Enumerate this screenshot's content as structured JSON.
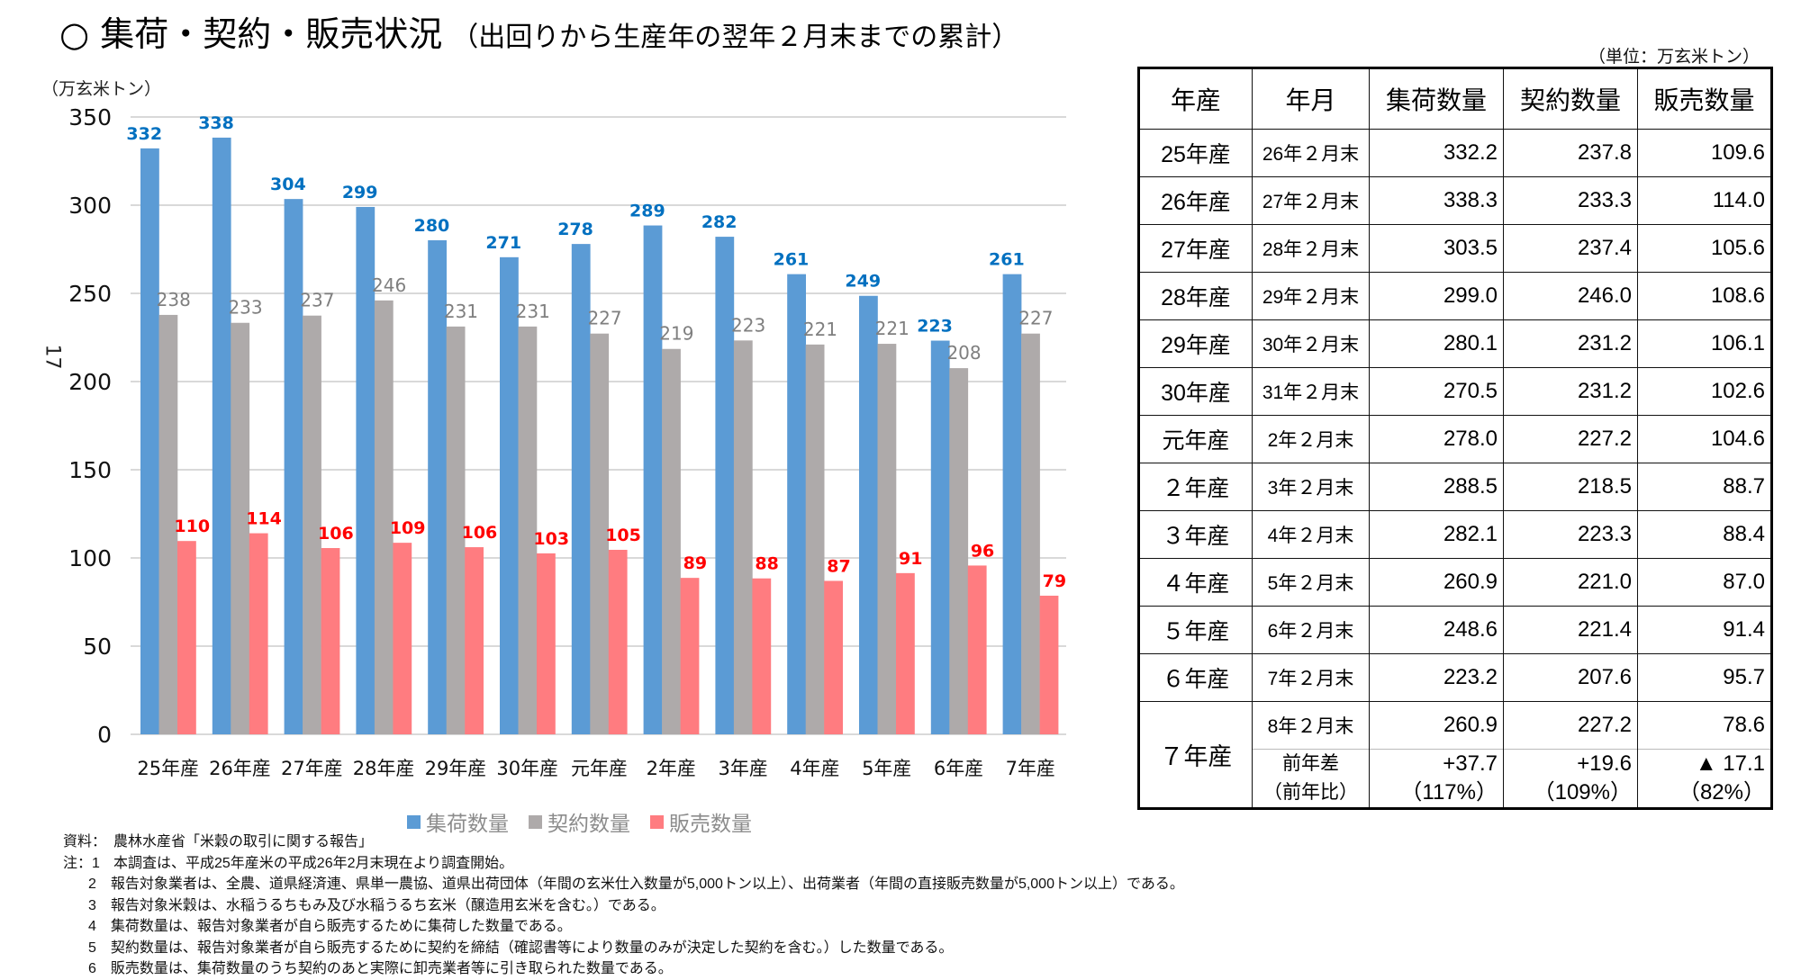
{
  "title": {
    "main": "○ 集荷・契約・販売状況",
    "sub": "（出回りから生産年の翌年２月末までの累計）"
  },
  "side_number": "17",
  "table_unit": "（単位：万玄米トン）",
  "chart_data": {
    "type": "bar",
    "ylabel": "（万玄米トン）",
    "ylim": [
      0,
      350
    ],
    "yticks": [
      0,
      50,
      100,
      150,
      200,
      250,
      300,
      350
    ],
    "grid": true,
    "legend_position": "bottom",
    "categories": [
      "25年産",
      "26年産",
      "27年産",
      "28年産",
      "29年産",
      "30年産",
      "元年産",
      "2年産",
      "3年産",
      "4年産",
      "5年産",
      "6年産",
      "7年産"
    ],
    "series": [
      {
        "name": "集荷数量",
        "color": "#5B9BD5",
        "label_color": "#0070C0",
        "values": [
          332.2,
          338.3,
          303.5,
          299.0,
          280.1,
          270.5,
          278.0,
          288.5,
          282.1,
          260.9,
          248.6,
          223.2,
          260.9
        ],
        "labels": [
          "332",
          "338",
          "304",
          "299",
          "280",
          "271",
          "278",
          "289",
          "282",
          "261",
          "249",
          "223",
          "261"
        ]
      },
      {
        "name": "契約数量",
        "color": "#AEAAAA",
        "label_color": "#7F7F7F",
        "values": [
          237.8,
          233.3,
          237.4,
          246.0,
          231.2,
          231.2,
          227.2,
          218.5,
          223.3,
          221.0,
          221.4,
          207.6,
          227.2
        ],
        "labels": [
          "238",
          "233",
          "237",
          "246",
          "231",
          "231",
          "227",
          "219",
          "223",
          "221",
          "221",
          "208",
          "227"
        ]
      },
      {
        "name": "販売数量",
        "color": "#FF7C80",
        "label_color": "#FF0000",
        "values": [
          109.6,
          114.0,
          105.6,
          108.6,
          106.1,
          102.6,
          104.6,
          88.7,
          88.4,
          87.0,
          91.4,
          95.7,
          78.6
        ],
        "labels": [
          "110",
          "114",
          "106",
          "109",
          "106",
          "103",
          "105",
          "89",
          "88",
          "87",
          "91",
          "96",
          "79"
        ]
      }
    ]
  },
  "table": {
    "headers": [
      "年産",
      "年月",
      "集荷数量",
      "契約数量",
      "販売数量"
    ],
    "rows": [
      [
        "25年産",
        "26年２月末",
        "332.2",
        "237.8",
        "109.6"
      ],
      [
        "26年産",
        "27年２月末",
        "338.3",
        "233.3",
        "114.0"
      ],
      [
        "27年産",
        "28年２月末",
        "303.5",
        "237.4",
        "105.6"
      ],
      [
        "28年産",
        "29年２月末",
        "299.0",
        "246.0",
        "108.6"
      ],
      [
        "29年産",
        "30年２月末",
        "280.1",
        "231.2",
        "106.1"
      ],
      [
        "30年産",
        "31年２月末",
        "270.5",
        "231.2",
        "102.6"
      ],
      [
        "元年産",
        "2年２月末",
        "278.0",
        "227.2",
        "104.6"
      ],
      [
        "２年産",
        "3年２月末",
        "288.5",
        "218.5",
        "88.7"
      ],
      [
        "３年産",
        "4年２月末",
        "282.1",
        "223.3",
        "88.4"
      ],
      [
        "４年産",
        "5年２月末",
        "260.9",
        "221.0",
        "87.0"
      ],
      [
        "５年産",
        "6年２月末",
        "248.6",
        "221.4",
        "91.4"
      ],
      [
        "６年産",
        "7年２月末",
        "223.2",
        "207.6",
        "95.7"
      ]
    ],
    "last": {
      "year": "７年産",
      "month": "8年２月末",
      "values": [
        "260.9",
        "227.2",
        "78.6"
      ],
      "diff_label": "前年差",
      "ratio_label": "（前年比）",
      "diff": [
        "+37.7",
        "+19.6",
        "▲ 17.1"
      ],
      "ratio": [
        "（117%）",
        "（109%）",
        "（82%）"
      ]
    }
  },
  "notes": {
    "source": "資料：　農林水産省「米穀の取引に関する報告」",
    "note_head": "注：1",
    "items": [
      "本調査は、平成25年産米の平成26年2月末現在より調査開始。",
      "2　報告対象業者は、全農、道県経済連、県単一農協、道県出荷団体（年間の玄米仕入数量が5,000トン以上）、出荷業者（年間の直接販売数量が5,000トン以上）である。",
      "3　報告対象米穀は、水稲うるちもみ及び水稲うるち玄米（醸造用玄米を含む。）である。",
      "4　集荷数量は、報告対象業者が自ら販売するために集荷した数量である。",
      "5　契約数量は、報告対象業者が自ら販売するために契約を締結（確認書等により数量のみが決定した契約を含む。）した数量である。",
      "6　販売数量は、集荷数量のうち契約のあと実際に卸売業者等に引き取られた数量である。"
    ]
  }
}
